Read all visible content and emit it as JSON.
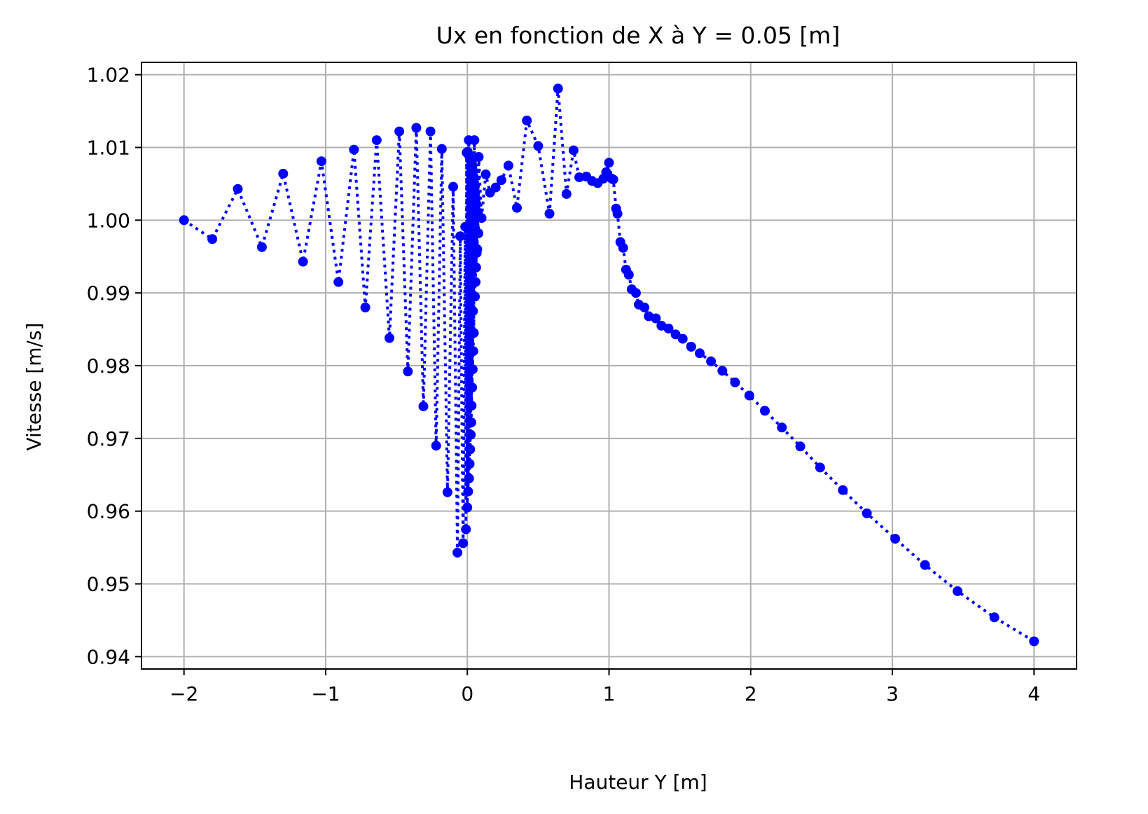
{
  "chart_data": {
    "type": "line",
    "title": "Ux en fonction de X à Y = 0.05 [m]",
    "xlabel": "Hauteur Y [m]",
    "ylabel": "Vitesse [m/s]",
    "xlim": [
      -2.3,
      4.3
    ],
    "ylim": [
      0.9383,
      1.0217
    ],
    "xticks": [
      -2,
      -1,
      0,
      1,
      2,
      3,
      4
    ],
    "xtick_labels": [
      "−2",
      "−1",
      "0",
      "1",
      "2",
      "3",
      "4"
    ],
    "yticks": [
      0.94,
      0.95,
      0.96,
      0.97,
      0.98,
      0.99,
      1.0,
      1.01,
      1.02
    ],
    "ytick_labels": [
      "0.94",
      "0.95",
      "0.96",
      "0.97",
      "0.98",
      "0.99",
      "1.00",
      "1.01",
      "1.02"
    ],
    "grid": true,
    "legend": "none",
    "colors": {
      "series": "#0000ff",
      "grid": "#b0b0b0",
      "axes": "#000000"
    },
    "series": [
      {
        "line_style": "dotted",
        "marker": "circle",
        "points": [
          [
            -2.0,
            1.0
          ],
          [
            -1.8,
            0.9974
          ],
          [
            -1.62,
            1.0043
          ],
          [
            -1.45,
            0.9963
          ],
          [
            -1.3,
            1.0064
          ],
          [
            -1.16,
            0.9943
          ],
          [
            -1.03,
            1.0081
          ],
          [
            -0.91,
            0.9915
          ],
          [
            -0.8,
            1.0097
          ],
          [
            -0.72,
            0.988
          ],
          [
            -0.64,
            1.011
          ],
          [
            -0.55,
            0.9838
          ],
          [
            -0.48,
            1.0122
          ],
          [
            -0.42,
            0.9792
          ],
          [
            -0.36,
            1.0127
          ],
          [
            -0.31,
            0.9744
          ],
          [
            -0.26,
            1.0122
          ],
          [
            -0.22,
            0.969
          ],
          [
            -0.18,
            1.0098
          ],
          [
            -0.14,
            0.9626
          ],
          [
            -0.1,
            1.0046
          ],
          [
            -0.07,
            0.9543
          ],
          [
            -0.05,
            0.9978
          ],
          [
            -0.03,
            0.9556
          ],
          [
            -0.015,
            0.9991
          ],
          [
            -0.01,
            0.9575
          ],
          [
            -0.005,
            1.0093
          ],
          [
            0.0,
            0.9605
          ],
          [
            0.003,
            1.0094
          ],
          [
            0.006,
            0.9627
          ],
          [
            0.009,
            1.009
          ],
          [
            0.012,
            0.9645
          ],
          [
            0.014,
            1.0088
          ],
          [
            0.016,
            0.9665
          ],
          [
            0.018,
            1.0086
          ],
          [
            0.02,
            0.9685
          ],
          [
            0.022,
            1.0084
          ],
          [
            0.024,
            0.9705
          ],
          [
            0.026,
            1.0082
          ],
          [
            0.028,
            0.9722
          ],
          [
            0.01,
            1.011
          ],
          [
            0.03,
            0.9745
          ],
          [
            0.032,
            1.008
          ],
          [
            0.034,
            0.977
          ],
          [
            0.036,
            1.0075
          ],
          [
            0.038,
            0.9795
          ],
          [
            0.04,
            1.0068
          ],
          [
            0.042,
            0.982
          ],
          [
            0.044,
            1.006
          ],
          [
            0.046,
            0.9845
          ],
          [
            0.048,
            1.0052
          ],
          [
            0.05,
            1.011
          ],
          [
            0.04,
            0.9875
          ],
          [
            0.052,
            1.0045
          ],
          [
            0.054,
            0.9895
          ],
          [
            0.056,
            1.0038
          ],
          [
            0.058,
            0.9915
          ],
          [
            0.06,
            1.003
          ],
          [
            0.062,
            0.9935
          ],
          [
            0.064,
            1.0022
          ],
          [
            0.066,
            0.9955
          ],
          [
            0.068,
            1.0012
          ],
          [
            0.07,
            0.996
          ],
          [
            0.072,
            1.0005
          ],
          [
            0.078,
            0.9982
          ],
          [
            0.08,
            1.0087
          ],
          [
            0.1,
            1.0003
          ],
          [
            0.13,
            1.0063
          ],
          [
            0.16,
            1.0038
          ],
          [
            0.2,
            1.0045
          ],
          [
            0.24,
            1.0055
          ],
          [
            0.29,
            1.0075
          ],
          [
            0.35,
            1.0017
          ],
          [
            0.42,
            1.0137
          ],
          [
            0.5,
            1.0102
          ],
          [
            0.58,
            1.0009
          ],
          [
            0.64,
            1.0181
          ],
          [
            0.7,
            1.0036
          ],
          [
            0.75,
            1.0096
          ],
          [
            0.79,
            1.0059
          ],
          [
            0.84,
            1.006
          ],
          [
            0.88,
            1.0054
          ],
          [
            0.92,
            1.0051
          ],
          [
            0.96,
            1.0057
          ],
          [
            0.98,
            1.0066
          ],
          [
            1.0,
            1.0079
          ],
          [
            1.02,
            1.0057
          ],
          [
            1.03,
            1.0056
          ],
          [
            1.05,
            1.0016
          ],
          [
            1.06,
            1.0009
          ],
          [
            1.08,
            0.997
          ],
          [
            1.1,
            0.9962
          ],
          [
            1.12,
            0.9932
          ],
          [
            1.14,
            0.9925
          ],
          [
            1.16,
            0.9905
          ],
          [
            1.19,
            0.99
          ],
          [
            1.21,
            0.9884
          ],
          [
            1.25,
            0.988
          ],
          [
            1.28,
            0.9868
          ],
          [
            1.33,
            0.9865
          ],
          [
            1.37,
            0.9855
          ],
          [
            1.42,
            0.9851
          ],
          [
            1.47,
            0.9843
          ],
          [
            1.52,
            0.9837
          ],
          [
            1.58,
            0.9826
          ],
          [
            1.64,
            0.9817
          ],
          [
            1.72,
            0.9806
          ],
          [
            1.8,
            0.9793
          ],
          [
            1.89,
            0.9777
          ],
          [
            1.99,
            0.9759
          ],
          [
            2.1,
            0.9738
          ],
          [
            2.22,
            0.9715
          ],
          [
            2.35,
            0.9689
          ],
          [
            2.49,
            0.966
          ],
          [
            2.65,
            0.9629
          ],
          [
            2.82,
            0.9597
          ],
          [
            3.02,
            0.9562
          ],
          [
            3.23,
            0.9526
          ],
          [
            3.46,
            0.949
          ],
          [
            3.72,
            0.9454
          ],
          [
            4.0,
            0.9421
          ]
        ]
      }
    ]
  }
}
